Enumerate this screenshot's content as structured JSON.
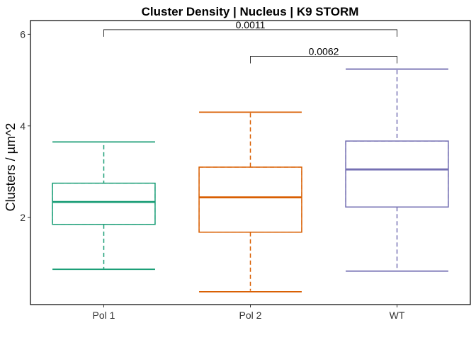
{
  "chart_data": {
    "type": "boxplot",
    "title": "Cluster Density | Nucleus | K9 STORM",
    "xlabel": "",
    "ylabel": "Clusters / µm^2",
    "ylim": [
      0.1,
      6.3
    ],
    "yticks": [
      2,
      4,
      6
    ],
    "grid": false,
    "categories": [
      "Pol 1",
      "Pol 2",
      "WT"
    ],
    "colors": {
      "Pol 1": "#1b9e77",
      "Pol 2": "#d95f02",
      "WT": "#7570b3"
    },
    "boxes": [
      {
        "category": "Pol 1",
        "min": 0.87,
        "q1": 1.85,
        "median": 2.34,
        "q3": 2.75,
        "max": 3.65,
        "mean_box": [
          1.85,
          2.75
        ],
        "mean_whisker": [
          0.87,
          3.58
        ]
      },
      {
        "category": "Pol 2",
        "min": 0.38,
        "q1": 1.68,
        "median": 2.44,
        "q3": 3.1,
        "max": 4.3,
        "mean_box": [
          1.68,
          3.1
        ],
        "mean_whisker": [
          0.4,
          4.28
        ]
      },
      {
        "category": "WT",
        "min": 0.83,
        "q1": 2.23,
        "median": 3.05,
        "q3": 3.67,
        "max": 5.24,
        "mean_box": [
          2.23,
          3.67
        ],
        "mean_whisker": [
          0.85,
          5.22
        ]
      }
    ],
    "comparisons": [
      {
        "groups": [
          "Pol 1",
          "WT"
        ],
        "y": 6.1,
        "label": "0.0011"
      },
      {
        "groups": [
          "Pol 2",
          "WT"
        ],
        "y": 5.52,
        "label": "0.0062"
      }
    ]
  }
}
